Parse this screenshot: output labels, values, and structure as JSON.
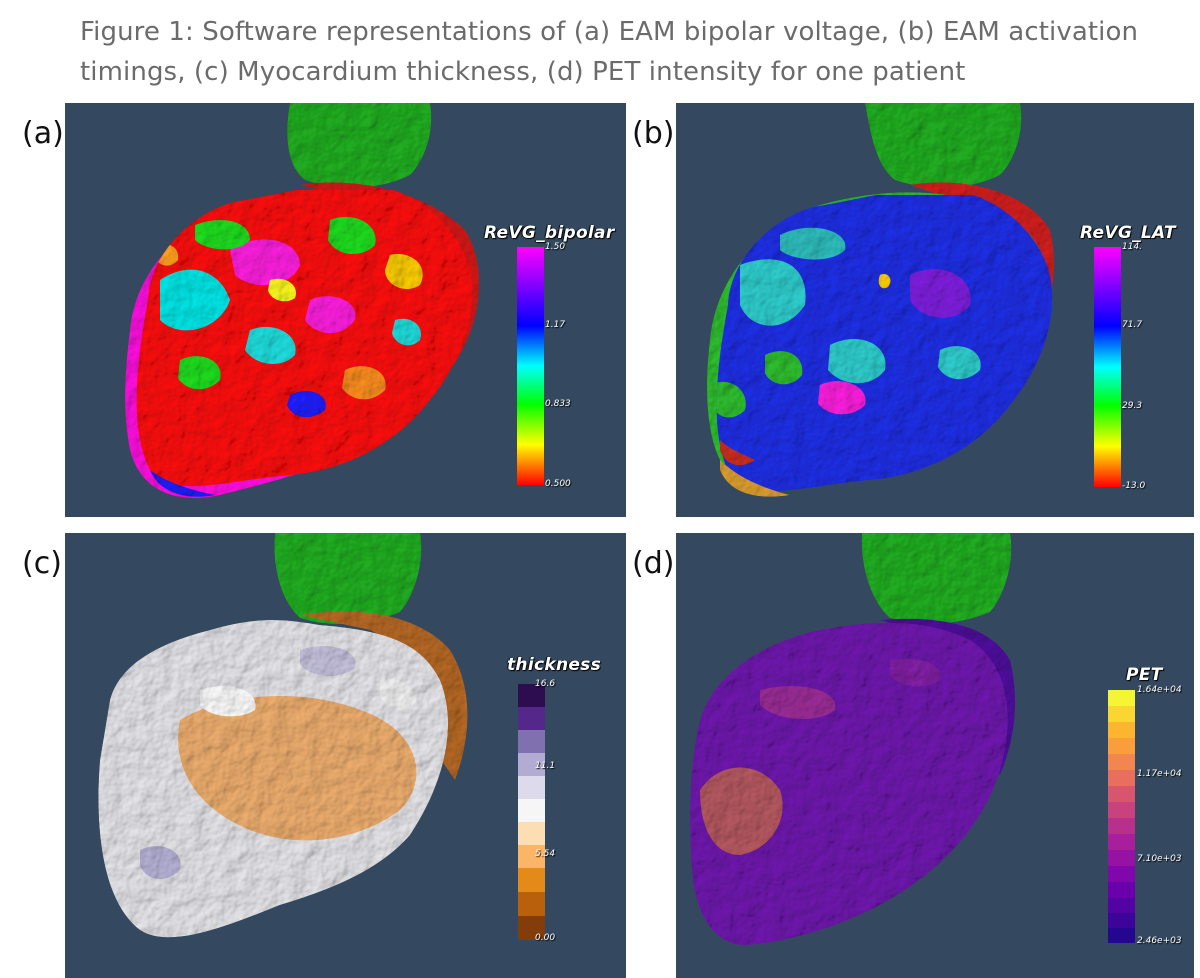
{
  "caption": {
    "line1": "Figure 1: Software representations of (a) EAM bipolar voltage, (b) EAM activation",
    "line2": "timings, (c) Myocardium thickness, (d) PET intensity for one patient"
  },
  "panels": [
    {
      "label": "(a)",
      "colorbar_title": "ReVG_bipolar",
      "ticks": [
        "1.50",
        "1.17",
        "0.833",
        "0.500"
      ],
      "colormap": "rainbow-red-to-magenta"
    },
    {
      "label": "(b)",
      "colorbar_title": "ReVG_LAT",
      "ticks": [
        "114.",
        "71.7",
        "29.3",
        "-13.0"
      ],
      "colormap": "rainbow-red-to-magenta"
    },
    {
      "label": "(c)",
      "colorbar_title": "thickness",
      "ticks": [
        "16.6",
        "11.1",
        "5.54",
        "0.00"
      ],
      "colormap": "purple-orange-diverging"
    },
    {
      "label": "(d)",
      "colorbar_title": "PET",
      "ticks": [
        "1.64e+04",
        "1.17e+04",
        "7.10e+03",
        "2.46e+03"
      ],
      "colormap": "plasma-like"
    }
  ],
  "colors": {
    "background": "#34495f",
    "aorta": "#22b022",
    "caption_text": "#6b6b6b"
  }
}
